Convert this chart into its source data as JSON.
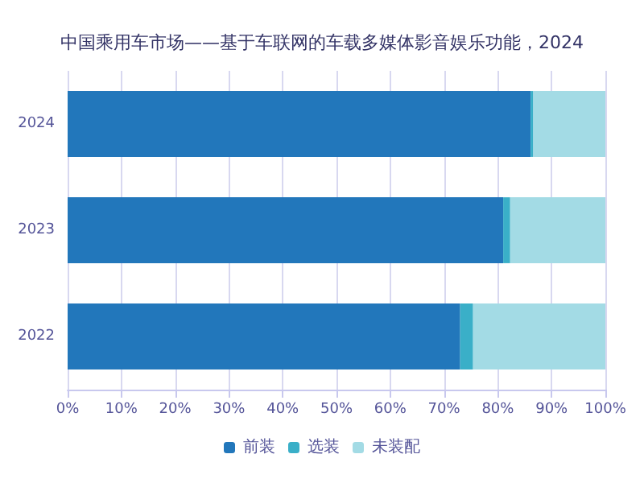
{
  "chart_data": {
    "type": "bar",
    "orientation": "horizontal",
    "stacked": true,
    "title": "中国乘用车市场——基于车联网的车载多媒体影音娱乐功能，2024",
    "categories": [
      "2024",
      "2023",
      "2022"
    ],
    "series": [
      {
        "name": "前装",
        "color": "#2277bb",
        "values": [
          86.1,
          81.0,
          73.0
        ]
      },
      {
        "name": "选装",
        "color": "#3aafc8",
        "values": [
          0.5,
          1.3,
          2.4
        ]
      },
      {
        "name": "未装配",
        "color": "#a3dbe5",
        "values": [
          13.4,
          17.7,
          24.6
        ]
      }
    ],
    "xlim": [
      0,
      100
    ],
    "xticks": [
      {
        "value": 0,
        "label": "0%"
      },
      {
        "value": 10,
        "label": "10%"
      },
      {
        "value": 20,
        "label": "20%"
      },
      {
        "value": 30,
        "label": "30%"
      },
      {
        "value": 40,
        "label": "40%"
      },
      {
        "value": 50,
        "label": "50%"
      },
      {
        "value": 60,
        "label": "60%"
      },
      {
        "value": 70,
        "label": "70%"
      },
      {
        "value": 80,
        "label": "80%"
      },
      {
        "value": 90,
        "label": "90%"
      },
      {
        "value": 100,
        "label": "100%"
      }
    ],
    "grid": "x",
    "legend": "bottom"
  }
}
